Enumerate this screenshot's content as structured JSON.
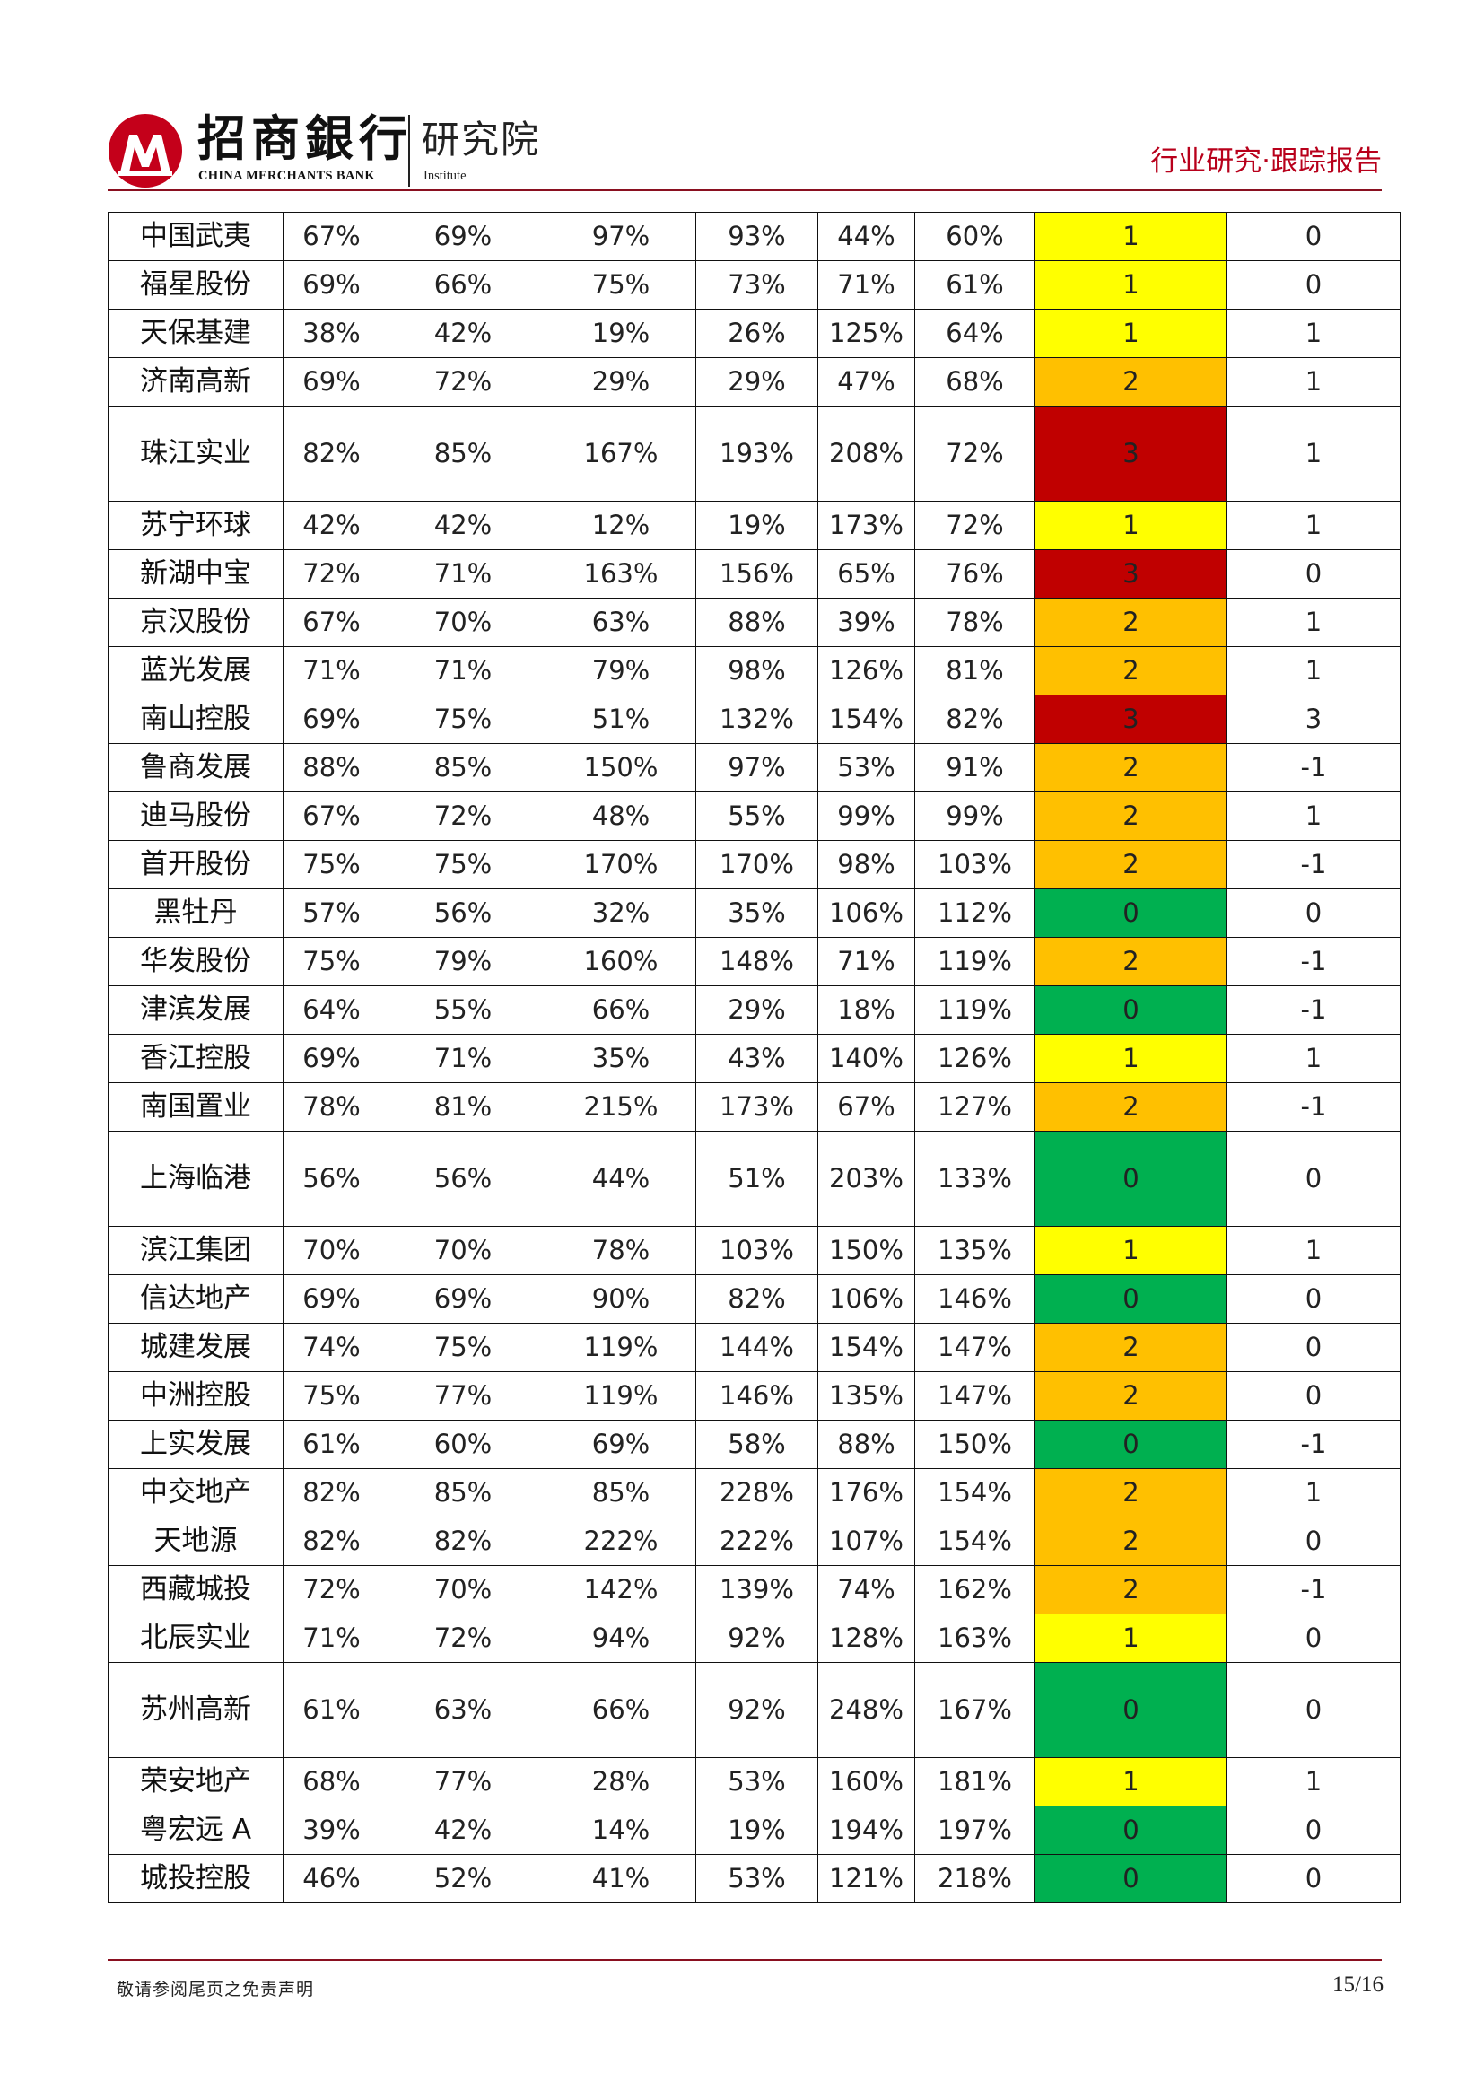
{
  "header": {
    "brand_cn": "招商銀行",
    "brand_en": "CHINA MERCHANTS BANK",
    "institute_cn": "研究院",
    "institute_en": "Institute",
    "report_type": "行业研究·跟踪报告"
  },
  "colors": {
    "brand_red": "#b8001b",
    "value_red": "#e0141e",
    "value_green": "#149647",
    "score_0": "#00b050",
    "score_1": "#ffff00",
    "score_2": "#ffc000",
    "score_3": "#c00000"
  },
  "table": {
    "rows": [
      {
        "name": "中国武夷",
        "c1": "67%",
        "c2": "69%",
        "c3": "97%",
        "c4": "93%",
        "c5": "44%",
        "c6": "60%",
        "score": "1",
        "last": "0",
        "red": [
          5,
          6
        ],
        "tall": false
      },
      {
        "name": "福星股份",
        "c1": "69%",
        "c2": "66%",
        "c3": "75%",
        "c4": "73%",
        "c5": "71%",
        "c6": "61%",
        "score": "1",
        "last": "0",
        "red": [
          5,
          6
        ],
        "tall": false
      },
      {
        "name": "天保基建",
        "c1": "38%",
        "c2": "42%",
        "c3": "19%",
        "c4": "26%",
        "c5": "125%",
        "c6": "64%",
        "score": "1",
        "last": "1",
        "red": [
          6,
          8
        ],
        "tall": false
      },
      {
        "name": "济南高新",
        "c1": "69%",
        "c2": "72%",
        "c3": "29%",
        "c4": "29%",
        "c5": "47%",
        "c6": "68%",
        "score": "2",
        "last": "1",
        "red": [
          2,
          5,
          6,
          8
        ],
        "tall": false
      },
      {
        "name": "珠江实业",
        "c1": "82%",
        "c2": "85%",
        "c3": "167%",
        "c4": "193%",
        "c5": "208%",
        "c6": "72%",
        "score": "3",
        "last": "1",
        "red": [
          1,
          2,
          3,
          4,
          6,
          8
        ],
        "tall": true
      },
      {
        "name": "苏宁环球",
        "c1": "42%",
        "c2": "42%",
        "c3": "12%",
        "c4": "19%",
        "c5": "173%",
        "c6": "72%",
        "score": "1",
        "last": "1",
        "red": [
          6,
          8
        ],
        "tall": false
      },
      {
        "name": "新湖中宝",
        "c1": "72%",
        "c2": "71%",
        "c3": "163%",
        "c4": "156%",
        "c5": "65%",
        "c6": "76%",
        "score": "3",
        "last": "0",
        "red": [
          1,
          2,
          3,
          4,
          5,
          6
        ],
        "tall": false
      },
      {
        "name": "京汉股份",
        "c1": "67%",
        "c2": "70%",
        "c3": "63%",
        "c4": "88%",
        "c5": "39%",
        "c6": "78%",
        "score": "2",
        "last": "1",
        "red": [
          5,
          6,
          8
        ],
        "tall": false
      },
      {
        "name": "蓝光发展",
        "c1": "71%",
        "c2": "71%",
        "c3": "79%",
        "c4": "98%",
        "c5": "126%",
        "c6": "81%",
        "score": "2",
        "last": "1",
        "red": [
          1,
          2,
          6,
          8
        ],
        "tall": false
      },
      {
        "name": "南山控股",
        "c1": "69%",
        "c2": "75%",
        "c3": "51%",
        "c4": "132%",
        "c5": "154%",
        "c6": "82%",
        "score": "3",
        "last": "3",
        "red": [
          2,
          4,
          6,
          8
        ],
        "tall": false
      },
      {
        "name": "鲁商发展",
        "c1": "88%",
        "c2": "85%",
        "c3": "150%",
        "c4": "97%",
        "c5": "53%",
        "c6": "91%",
        "score": "2",
        "last": "-1",
        "red": [
          1,
          2,
          3,
          5,
          6
        ],
        "green": [
          8
        ],
        "tall": false
      },
      {
        "name": "迪马股份",
        "c1": "67%",
        "c2": "72%",
        "c3": "48%",
        "c4": "55%",
        "c5": "99%",
        "c6": "99%",
        "score": "2",
        "last": "1",
        "red": [
          2,
          5,
          6,
          8
        ],
        "tall": false
      },
      {
        "name": "首开股份",
        "c1": "75%",
        "c2": "75%",
        "c3": "170%",
        "c4": "170%",
        "c5": "98%",
        "c6": "103%",
        "score": "2",
        "last": "-1",
        "red": [
          1,
          2,
          3,
          4,
          5
        ],
        "green": [
          8
        ],
        "tall": false
      },
      {
        "name": "黑牡丹",
        "c1": "57%",
        "c2": "56%",
        "c3": "32%",
        "c4": "35%",
        "c5": "106%",
        "c6": "112%",
        "score": "0",
        "last": "0",
        "red": [],
        "tall": false
      },
      {
        "name": "华发股份",
        "c1": "75%",
        "c2": "79%",
        "c3": "160%",
        "c4": "148%",
        "c5": "71%",
        "c6": "119%",
        "score": "2",
        "last": "-1",
        "red": [
          1,
          2,
          3,
          4,
          5
        ],
        "green": [
          8
        ],
        "tall": false
      },
      {
        "name": "津滨发展",
        "c1": "64%",
        "c2": "55%",
        "c3": "66%",
        "c4": "29%",
        "c5": "18%",
        "c6": "119%",
        "score": "0",
        "last": "-1",
        "red": [
          5
        ],
        "green": [
          8
        ],
        "tall": false
      },
      {
        "name": "香江控股",
        "c1": "69%",
        "c2": "71%",
        "c3": "35%",
        "c4": "43%",
        "c5": "140%",
        "c6": "126%",
        "score": "1",
        "last": "1",
        "red": [
          2,
          8
        ],
        "tall": false
      },
      {
        "name": "南国置业",
        "c1": "78%",
        "c2": "81%",
        "c3": "215%",
        "c4": "173%",
        "c5": "67%",
        "c6": "127%",
        "score": "2",
        "last": "-1",
        "red": [
          1,
          2,
          3,
          4,
          5
        ],
        "green": [
          8
        ],
        "tall": false
      },
      {
        "name": "上海临港",
        "c1": "56%",
        "c2": "56%",
        "c3": "44%",
        "c4": "51%",
        "c5": "203%",
        "c6": "133%",
        "score": "0",
        "last": "0",
        "red": [],
        "tall": true
      },
      {
        "name": "滨江集团",
        "c1": "70%",
        "c2": "70%",
        "c3": "78%",
        "c4": "103%",
        "c5": "150%",
        "c6": "135%",
        "score": "1",
        "last": "1",
        "red": [
          1,
          4,
          8
        ],
        "tall": false
      },
      {
        "name": "信达地产",
        "c1": "69%",
        "c2": "69%",
        "c3": "90%",
        "c4": "82%",
        "c5": "106%",
        "c6": "146%",
        "score": "0",
        "last": "0",
        "red": [],
        "tall": false
      },
      {
        "name": "城建发展",
        "c1": "74%",
        "c2": "75%",
        "c3": "119%",
        "c4": "144%",
        "c5": "154%",
        "c6": "147%",
        "score": "2",
        "last": "0",
        "red": [
          1,
          2,
          3,
          4
        ],
        "tall": false
      },
      {
        "name": "中洲控股",
        "c1": "75%",
        "c2": "77%",
        "c3": "119%",
        "c4": "146%",
        "c5": "135%",
        "c6": "147%",
        "score": "2",
        "last": "0",
        "red": [
          1,
          2,
          3,
          4
        ],
        "tall": false
      },
      {
        "name": "上实发展",
        "c1": "61%",
        "c2": "60%",
        "c3": "69%",
        "c4": "58%",
        "c5": "88%",
        "c6": "150%",
        "score": "0",
        "last": "-1",
        "red": [
          5
        ],
        "green": [
          8
        ],
        "tall": false
      },
      {
        "name": "中交地产",
        "c1": "82%",
        "c2": "85%",
        "c3": "85%",
        "c4": "228%",
        "c5": "176%",
        "c6": "154%",
        "score": "2",
        "last": "1",
        "red": [
          1,
          2,
          4,
          8
        ],
        "tall": false
      },
      {
        "name": "天地源",
        "c1": "82%",
        "c2": "82%",
        "c3": "222%",
        "c4": "222%",
        "c5": "107%",
        "c6": "154%",
        "score": "2",
        "last": "0",
        "red": [
          1,
          2,
          3,
          4
        ],
        "tall": false
      },
      {
        "name": "西藏城投",
        "c1": "72%",
        "c2": "70%",
        "c3": "142%",
        "c4": "139%",
        "c5": "74%",
        "c6": "162%",
        "score": "2",
        "last": "-1",
        "red": [
          1,
          3,
          4,
          5
        ],
        "green": [
          8
        ],
        "tall": false
      },
      {
        "name": "北辰实业",
        "c1": "71%",
        "c2": "72%",
        "c3": "94%",
        "c4": "92%",
        "c5": "128%",
        "c6": "163%",
        "score": "1",
        "last": "0",
        "red": [
          1,
          2
        ],
        "tall": false
      },
      {
        "name": "苏州高新",
        "c1": "61%",
        "c2": "63%",
        "c3": "66%",
        "c4": "92%",
        "c5": "248%",
        "c6": "167%",
        "score": "0",
        "last": "0",
        "red": [],
        "tall": true
      },
      {
        "name": "荣安地产",
        "c1": "68%",
        "c2": "77%",
        "c3": "28%",
        "c4": "53%",
        "c5": "160%",
        "c6": "181%",
        "score": "1",
        "last": "1",
        "red": [
          2,
          8
        ],
        "tall": false
      },
      {
        "name": "粤宏远 A",
        "c1": "39%",
        "c2": "42%",
        "c3": "14%",
        "c4": "19%",
        "c5": "194%",
        "c6": "197%",
        "score": "0",
        "last": "0",
        "red": [],
        "tall": false
      },
      {
        "name": "城投控股",
        "c1": "46%",
        "c2": "52%",
        "c3": "41%",
        "c4": "53%",
        "c5": "121%",
        "c6": "218%",
        "score": "0",
        "last": "0",
        "red": [],
        "tall": false
      }
    ]
  },
  "footer": {
    "disclaimer": "敬请参阅尾页之免责声明",
    "page": "15/16"
  }
}
